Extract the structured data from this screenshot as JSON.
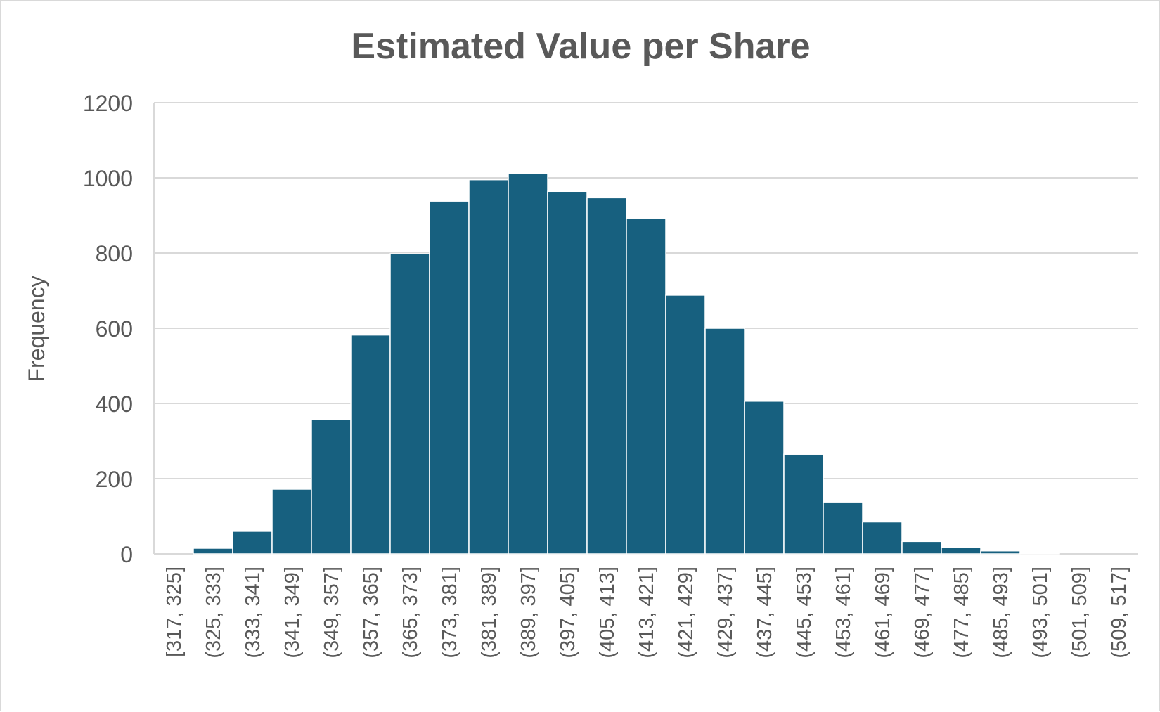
{
  "chart_data": {
    "type": "bar",
    "title": "Estimated Value per Share",
    "xlabel": "",
    "ylabel": "Frequency",
    "ylim": [
      0,
      1200
    ],
    "yticks": [
      0,
      200,
      400,
      600,
      800,
      1000,
      1200
    ],
    "grid": true,
    "bar_color": "#17607f",
    "categories": [
      "[317, 325]",
      "(325, 333]",
      "(333, 341]",
      "(341, 349]",
      "(349, 357]",
      "(357, 365]",
      "(365, 373]",
      "(373, 381]",
      "(381, 389]",
      "(389, 397]",
      "(397, 405]",
      "(405, 413]",
      "(413, 421]",
      "(421, 429]",
      "(429, 437]",
      "(437, 445]",
      "(445, 453]",
      "(453, 461]",
      "(461, 469]",
      "(469, 477]",
      "(477, 485]",
      "(485, 493]",
      "(493, 501]",
      "(501, 509]",
      "(509, 517]"
    ],
    "values": [
      0,
      15,
      60,
      172,
      358,
      582,
      798,
      938,
      995,
      1012,
      964,
      947,
      893,
      688,
      600,
      406,
      265,
      138,
      85,
      33,
      17,
      8,
      1,
      0,
      0
    ]
  }
}
